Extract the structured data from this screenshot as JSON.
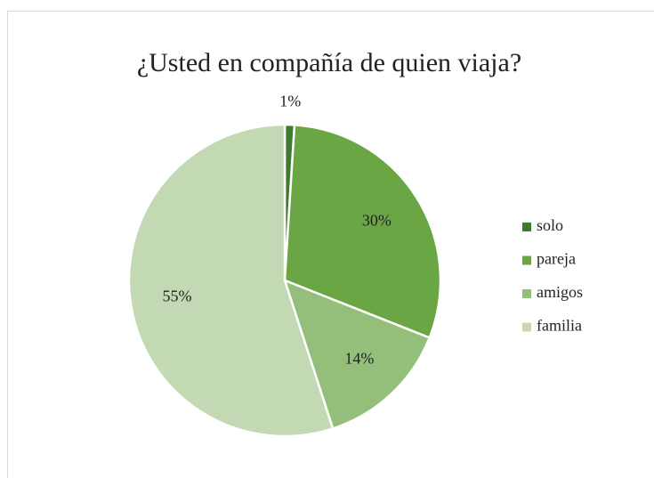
{
  "chart_data": {
    "type": "pie",
    "title": "¿Usted en compañía de quien viaja?",
    "categories": [
      "solo",
      "pareja",
      "amigos",
      "familia"
    ],
    "values": [
      1,
      30,
      14,
      55
    ],
    "value_labels": [
      "1%",
      "30%",
      "14%",
      "55%"
    ],
    "colors": [
      "#3f7b2e",
      "#6aa644",
      "#93bf7b",
      "#c2d9b3"
    ],
    "legend": "right"
  }
}
